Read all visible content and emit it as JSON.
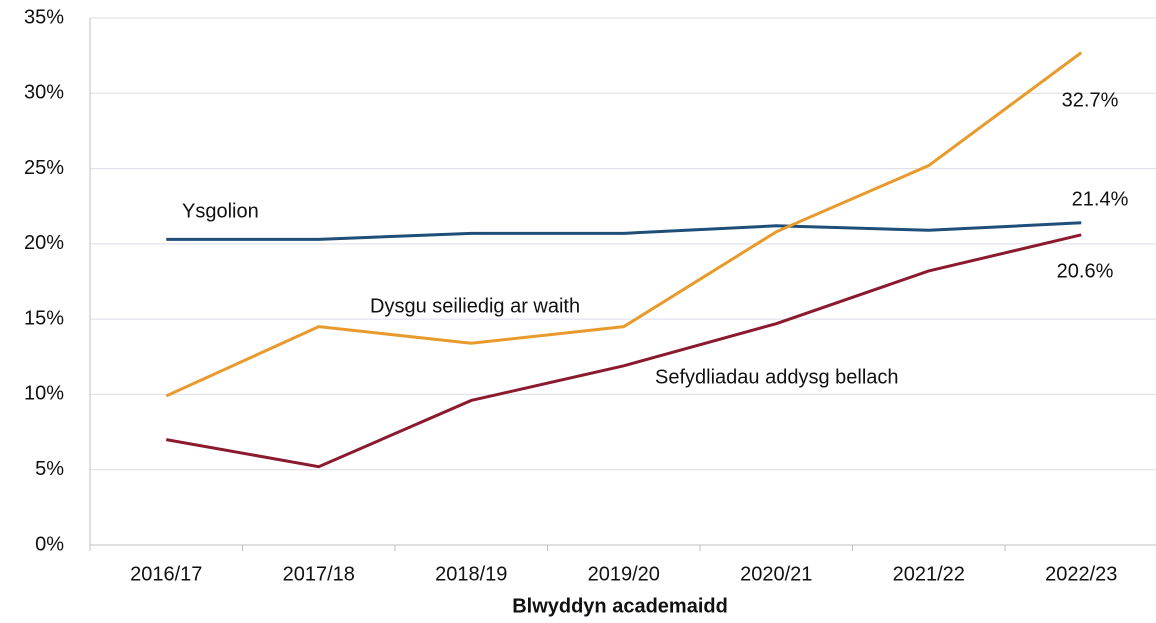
{
  "chart_data": {
    "type": "line",
    "x_label": "Blwyddyn academaidd",
    "categories": [
      "2016/17",
      "2017/18",
      "2018/19",
      "2019/20",
      "2020/21",
      "2021/22",
      "2022/23"
    ],
    "series": [
      {
        "name": "Ysgolion",
        "color": "#1f4e79",
        "values": [
          20.3,
          20.3,
          20.7,
          20.7,
          21.2,
          20.9,
          21.4
        ],
        "value_labels": [
          null,
          null,
          null,
          null,
          null,
          null,
          "21.4%"
        ]
      },
      {
        "name": "Dysgu seiliedig ar waith",
        "color": "#e89a2c",
        "values": [
          9.9,
          14.5,
          13.4,
          14.5,
          20.8,
          25.2,
          32.7
        ],
        "value_labels": [
          null,
          null,
          null,
          null,
          null,
          null,
          "32.7%"
        ]
      },
      {
        "name": "Sefydliadau addysg bellach",
        "color": "#8b1a2e",
        "values": [
          7.0,
          5.2,
          9.6,
          11.9,
          14.7,
          18.2,
          20.6
        ],
        "value_labels": [
          null,
          null,
          null,
          null,
          null,
          null,
          "20.6%"
        ]
      }
    ],
    "ylim": [
      0,
      35
    ],
    "yticks": [
      {
        "value": 0,
        "label": "0%"
      },
      {
        "value": 5,
        "label": "5%"
      },
      {
        "value": 10,
        "label": "10%"
      },
      {
        "value": 15,
        "label": "15%"
      },
      {
        "value": 20,
        "label": "20%"
      },
      {
        "value": 25,
        "label": "25%"
      },
      {
        "value": 30,
        "label": "30%"
      },
      {
        "value": 35,
        "label": "35%"
      }
    ],
    "grid": true
  }
}
